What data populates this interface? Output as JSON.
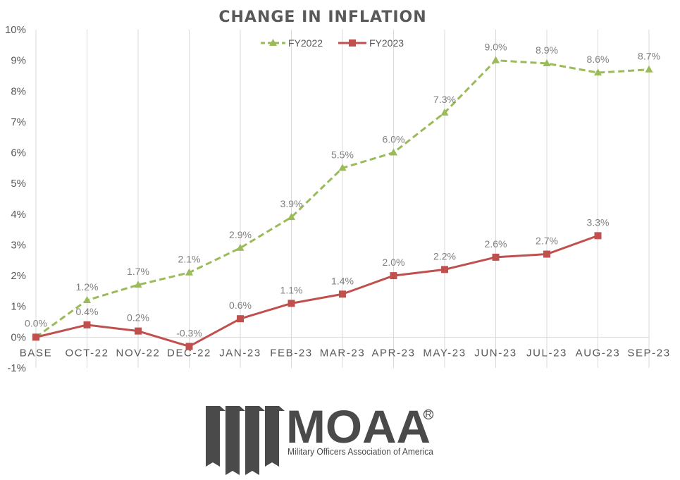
{
  "chart_data": {
    "type": "line",
    "title": "CHANGE IN INFLATION",
    "xlabel": "",
    "ylabel": "",
    "categories": [
      "BASE",
      "OCT-22",
      "NOV-22",
      "DEC-22",
      "JAN-23",
      "FEB-23",
      "MAR-23",
      "APR-23",
      "MAY-23",
      "JUN-23",
      "JUL-23",
      "AUG-23",
      "SEP-23"
    ],
    "ylim": [
      -1,
      10
    ],
    "yticks": [
      -1,
      0,
      1,
      2,
      3,
      4,
      5,
      6,
      7,
      8,
      9,
      10
    ],
    "ytick_labels": [
      "-1%",
      "0%",
      "1%",
      "2%",
      "3%",
      "4%",
      "5%",
      "6%",
      "7%",
      "8%",
      "9%",
      "10%"
    ],
    "grid": "vertical",
    "legend": "top-center",
    "series": [
      {
        "name": "FY2022",
        "color": "#9bbb59",
        "line_style": "dashed",
        "marker": "triangle",
        "values": [
          0.0,
          1.2,
          1.7,
          2.1,
          2.9,
          3.9,
          5.5,
          6.0,
          7.3,
          9.0,
          8.9,
          8.6,
          8.7
        ],
        "labels": [
          "0.0%",
          "1.2%",
          "1.7%",
          "2.1%",
          "2.9%",
          "3.9%",
          "5.5%",
          "6.0%",
          "7.3%",
          "9.0%",
          "8.9%",
          "8.6%",
          "8.7%"
        ]
      },
      {
        "name": "FY2023",
        "color": "#c0504d",
        "line_style": "solid",
        "marker": "square",
        "values": [
          0.0,
          0.4,
          0.2,
          -0.3,
          0.6,
          1.1,
          1.4,
          2.0,
          2.2,
          2.6,
          2.7,
          3.3,
          null
        ],
        "labels": [
          "",
          "0.4%",
          "0.2%",
          "-0.3%",
          "0.6%",
          "1.1%",
          "1.4%",
          "2.0%",
          "2.2%",
          "2.6%",
          "2.7%",
          "3.3%",
          ""
        ]
      }
    ]
  },
  "logo": {
    "word": "MOAA",
    "registered": "®",
    "subtitle": "Military Officers Association of America"
  }
}
